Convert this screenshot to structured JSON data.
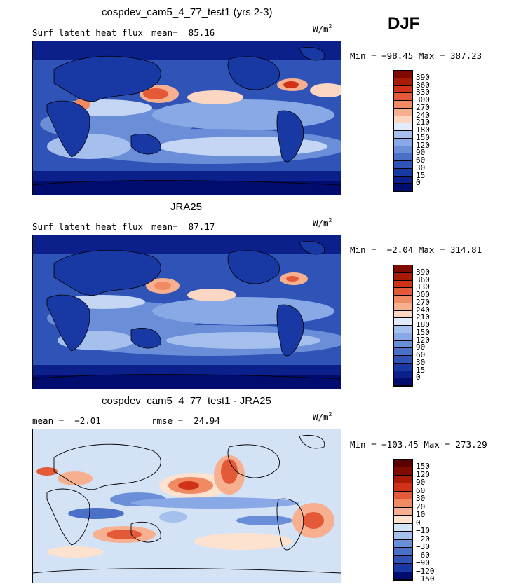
{
  "season": "DJF",
  "colors": {
    "positive": [
      "#ffffff",
      "#e3ebfb",
      "#c4d6f4",
      "#a6c0ee",
      "#89a9e6",
      "#6b8ed8",
      "#4b70c7",
      "#2f53b6",
      "#1838a4",
      "#0b208a",
      "#000c6e"
    ],
    "absolute": [
      "#000c6e",
      "#0b208a",
      "#1838a4",
      "#2f53b6",
      "#4b70c7",
      "#6b8ed8",
      "#89a9e6",
      "#a6c0ee",
      "#e3ebfb",
      "#fbd6c2",
      "#f6b08f",
      "#ef8a62",
      "#e45a39",
      "#cf3216",
      "#a81b07",
      "#7f0a00"
    ],
    "difference": [
      "#000c6e",
      "#1838a4",
      "#2f53b6",
      "#4b70c7",
      "#6b8ed8",
      "#a6c0ee",
      "#d4e2f6",
      "#fde2cf",
      "#f6b08f",
      "#ef8a62",
      "#e45a39",
      "#cf3216",
      "#a81b07",
      "#7f0a00"
    ],
    "land_outline": "#000000"
  },
  "panels": [
    {
      "title": "cospdev_cam5_4_77_test1 (yrs 2-3)",
      "left_label": "Surf latent heat flux",
      "mean_text": "mean=  85.16",
      "units": "W/m",
      "units_sup": "2",
      "minmax_text": "Min = −98.45 Max = 387.23",
      "colorbar_labels": [
        "390",
        "360",
        "330",
        "300",
        "270",
        "240",
        "210",
        "180",
        "150",
        "120",
        "90",
        "60",
        "30",
        "15",
        "0"
      ],
      "field": "model"
    },
    {
      "title": "JRA25",
      "left_label": "Surf latent heat flux",
      "mean_text": "mean=  87.17",
      "units": "W/m",
      "units_sup": "2",
      "minmax_text": "Min =  −2.04 Max = 314.81",
      "colorbar_labels": [
        "390",
        "360",
        "330",
        "300",
        "270",
        "240",
        "210",
        "180",
        "150",
        "120",
        "90",
        "60",
        "30",
        "15",
        "0"
      ],
      "field": "obs"
    },
    {
      "title": "cospdev_cam5_4_77_test1 - JRA25",
      "left_label": "mean =  −2.01",
      "mean_text": "rmse =  24.94",
      "units": "W/m",
      "units_sup": "2",
      "minmax_text": "Min = −103.45 Max = 273.29",
      "colorbar_labels": [
        "150",
        "120",
        "90",
        "60",
        "30",
        "20",
        "10",
        "0",
        "−10",
        "−20",
        "−30",
        "−60",
        "−90",
        "−120",
        "−150"
      ],
      "field": "diff"
    }
  ],
  "chart_data": [
    {
      "type": "heatmap",
      "title": "cospdev_cam5_4_77_test1 (yrs 2-3)",
      "variable": "Surf latent heat flux",
      "units": "W/m2",
      "season": "DJF",
      "mean": 85.16,
      "min": -98.45,
      "max": 387.23,
      "contour_levels": [
        0,
        15,
        30,
        60,
        90,
        120,
        150,
        180,
        210,
        240,
        270,
        300,
        330,
        360,
        390
      ]
    },
    {
      "type": "heatmap",
      "title": "JRA25",
      "variable": "Surf latent heat flux",
      "units": "W/m2",
      "season": "DJF",
      "mean": 87.17,
      "min": -2.04,
      "max": 314.81,
      "contour_levels": [
        0,
        15,
        30,
        60,
        90,
        120,
        150,
        180,
        210,
        240,
        270,
        300,
        330,
        360,
        390
      ]
    },
    {
      "type": "heatmap",
      "title": "cospdev_cam5_4_77_test1 - JRA25",
      "units": "W/m2",
      "season": "DJF",
      "mean": -2.01,
      "rmse": 24.94,
      "min": -103.45,
      "max": 273.29,
      "contour_levels": [
        -150,
        -120,
        -90,
        -60,
        -30,
        -20,
        -10,
        0,
        10,
        20,
        30,
        60,
        90,
        120,
        150
      ]
    }
  ]
}
